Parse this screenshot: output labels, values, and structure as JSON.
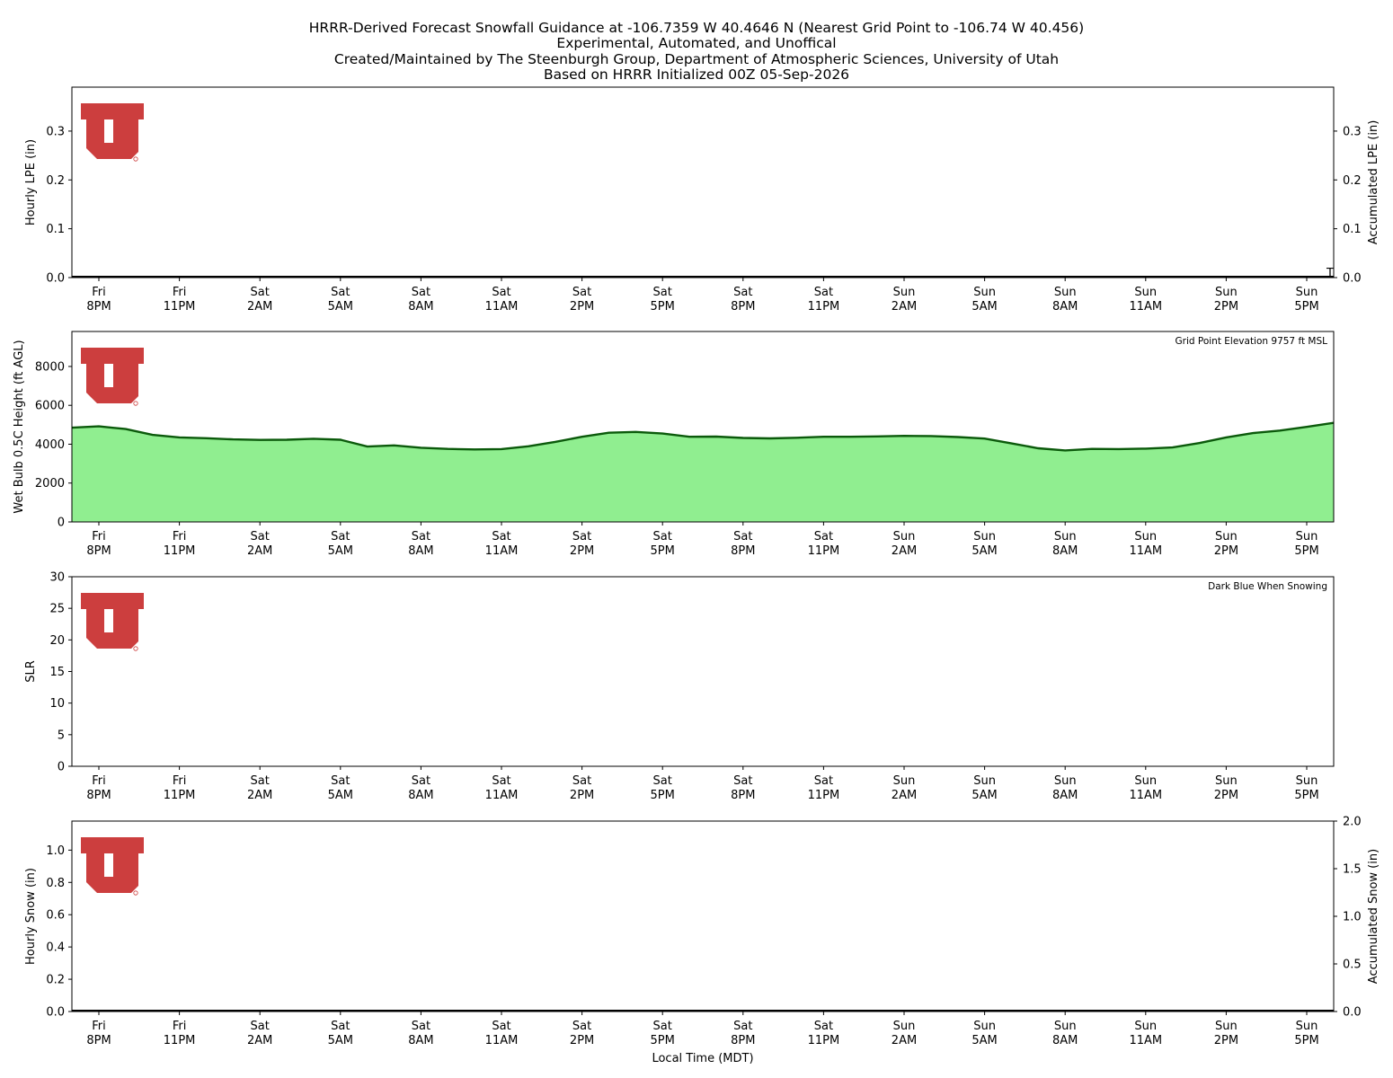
{
  "title_lines": [
    "HRRR-Derived Forecast Snowfall Guidance at -106.7359 W 40.4646 N (Nearest Grid Point to -106.74 W 40.456)",
    "Experimental, Automated, and Unoffical",
    "Created/Maintained by The Steenburgh Group, Department of Atmospheric Sciences, University of Utah",
    "Based on HRRR Initialized 00Z 05-Sep-2026"
  ],
  "x_ticks": [
    [
      "Fri",
      "8PM"
    ],
    [
      "Fri",
      "11PM"
    ],
    [
      "Sat",
      "2AM"
    ],
    [
      "Sat",
      "5AM"
    ],
    [
      "Sat",
      "8AM"
    ],
    [
      "Sat",
      "11AM"
    ],
    [
      "Sat",
      "2PM"
    ],
    [
      "Sat",
      "5PM"
    ],
    [
      "Sat",
      "8PM"
    ],
    [
      "Sat",
      "11PM"
    ],
    [
      "Sun",
      "2AM"
    ],
    [
      "Sun",
      "5AM"
    ],
    [
      "Sun",
      "8AM"
    ],
    [
      "Sun",
      "11AM"
    ],
    [
      "Sun",
      "2PM"
    ],
    [
      "Sun",
      "5PM"
    ]
  ],
  "xlabel": "Local Time (MDT)",
  "logo_name": "university-of-utah-block-u-logo",
  "colors": {
    "logo_red": "#cc3e3e",
    "wetbulb_fill": "#90ee90",
    "wetbulb_line": "#0b5a0b"
  },
  "chart_data": [
    {
      "type": "bar",
      "name": "hourly-lpe",
      "ylabel": "Hourly LPE (in)",
      "ylim": [
        0,
        0.39
      ],
      "yticks": [
        0.0,
        0.1,
        0.2,
        0.3
      ],
      "y2label": "Accumulated LPE (in)",
      "y2lim": [
        0,
        0.39
      ],
      "y2ticks": [
        0.0,
        0.1,
        0.2,
        0.3
      ],
      "end_annotation": "T",
      "values": []
    },
    {
      "type": "area",
      "name": "wet-bulb-height",
      "ylabel": "Wet Bulb 0.5C Height (ft AGL)",
      "ylim": [
        0,
        9800
      ],
      "yticks": [
        0,
        2000,
        4000,
        6000,
        8000
      ],
      "annotation": "Grid Point Elevation 9757 ft MSL",
      "x_hours_from_first_tick": [
        -1,
        0,
        1,
        2,
        3,
        4,
        5,
        6,
        7,
        8,
        9,
        10,
        11,
        12,
        13,
        14,
        15,
        16,
        17,
        18,
        19,
        20,
        21,
        22,
        23,
        24,
        25,
        26,
        27,
        28,
        29,
        30,
        31,
        32,
        33,
        34,
        35,
        36,
        37,
        38,
        39,
        40,
        41,
        42,
        43,
        44,
        45,
        46,
        47
      ],
      "values": [
        4850,
        4920,
        4780,
        4480,
        4350,
        4310,
        4250,
        4220,
        4230,
        4280,
        4230,
        3880,
        3940,
        3820,
        3760,
        3730,
        3750,
        3890,
        4120,
        4380,
        4590,
        4630,
        4550,
        4380,
        4390,
        4320,
        4300,
        4330,
        4380,
        4380,
        4400,
        4430,
        4420,
        4370,
        4290,
        4040,
        3790,
        3680,
        3760,
        3750,
        3770,
        3830,
        4060,
        4350,
        4570,
        4700,
        4890,
        5100,
        5100
      ]
    },
    {
      "type": "bar",
      "name": "slr",
      "ylabel": "SLR",
      "ylim": [
        0,
        30
      ],
      "yticks": [
        0,
        5,
        10,
        15,
        20,
        25,
        30
      ],
      "annotation": "Dark Blue When Snowing",
      "values": []
    },
    {
      "type": "bar",
      "name": "hourly-snow",
      "ylabel": "Hourly Snow (in)",
      "ylim": [
        0,
        1.18
      ],
      "yticks": [
        0.0,
        0.2,
        0.4,
        0.6,
        0.8,
        1.0
      ],
      "y2label": "Accumulated Snow (in)",
      "y2lim": [
        0,
        2.0
      ],
      "y2ticks": [
        0.0,
        0.5,
        1.0,
        1.5,
        2.0
      ],
      "values": []
    }
  ]
}
